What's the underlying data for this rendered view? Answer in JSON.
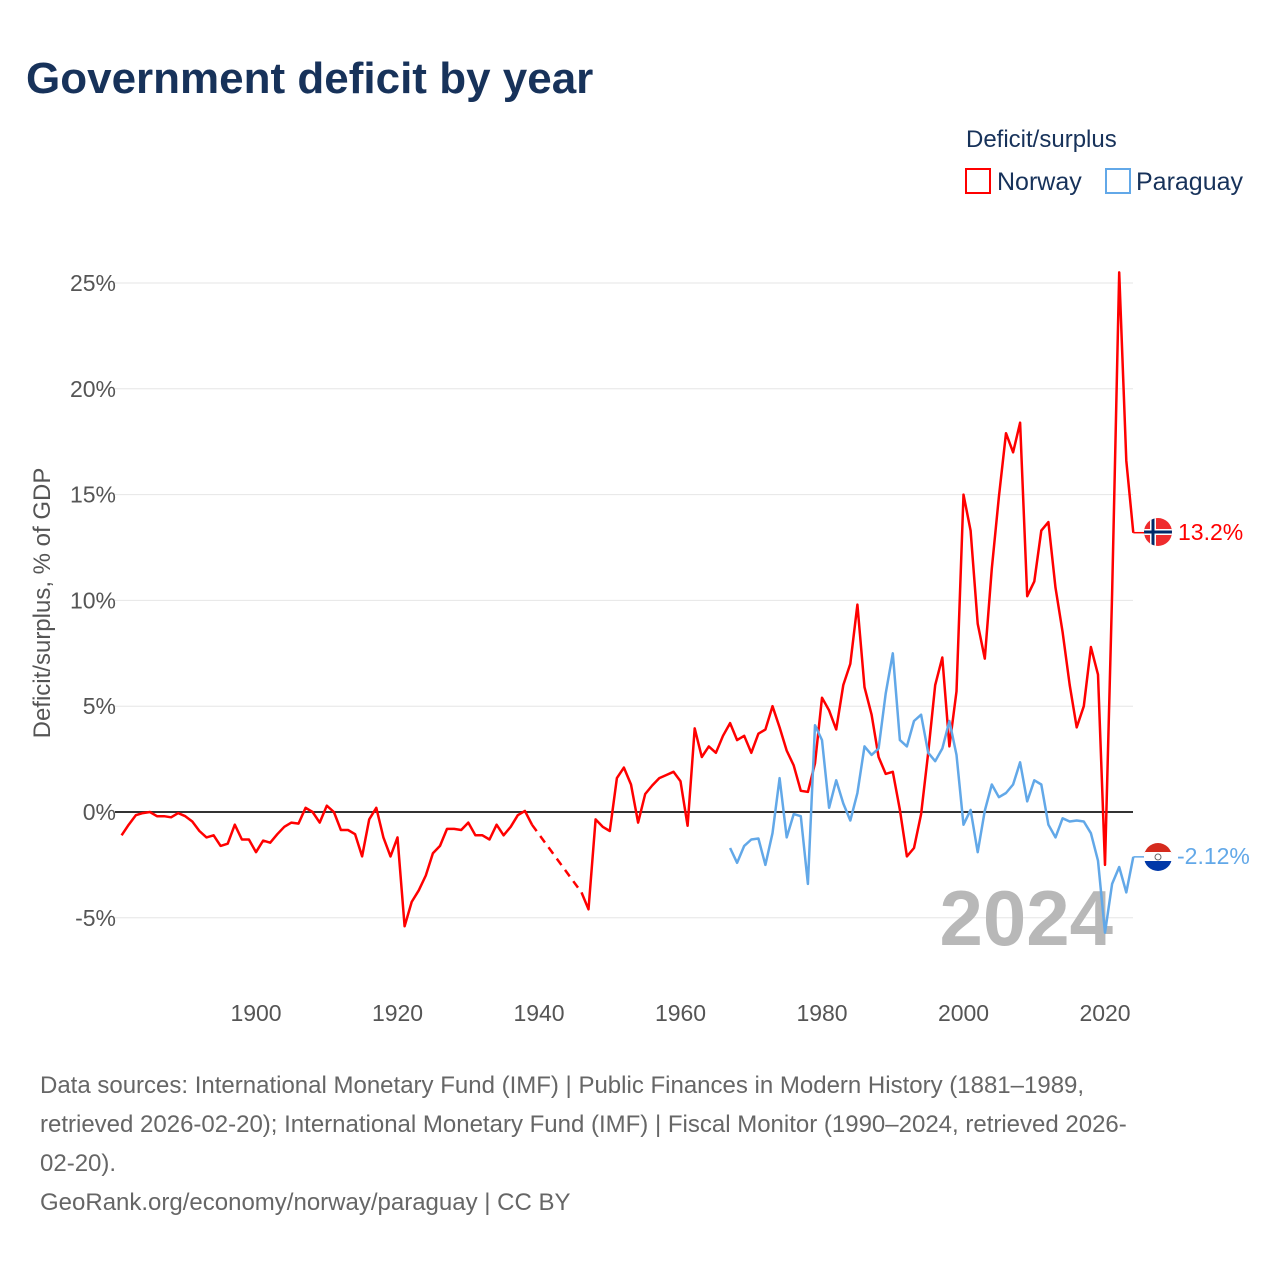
{
  "title": "Government deficit by year",
  "legend": {
    "title": "Deficit/surplus",
    "items": [
      {
        "label": "Norway",
        "color": "#ff0000"
      },
      {
        "label": "Paraguay",
        "color": "#62a8e8"
      }
    ]
  },
  "watermark_year": "2024",
  "footer": {
    "lines": [
      "Data sources: International Monetary Fund (IMF) | Public Finances in Modern History (1881–1989,",
      "retrieved 2026-02-20); International Monetary Fund (IMF) | Fiscal Monitor (1990–2024, retrieved 2026-",
      "02-20).",
      "GeoRank.org/economy/norway/paraguay | CC BY"
    ]
  },
  "chart_data": {
    "type": "line",
    "title": "Government deficit by year",
    "xlabel": "",
    "ylabel": "Deficit/surplus, % of GDP",
    "xlim": [
      1881,
      2024
    ],
    "ylim": [
      -7,
      26
    ],
    "yticks": [
      -5,
      0,
      5,
      10,
      15,
      20,
      25
    ],
    "ytick_labels": [
      "-5%",
      "0%",
      "5%",
      "10%",
      "15%",
      "20%",
      "25%"
    ],
    "xticks": [
      1900,
      1920,
      1940,
      1960,
      1980,
      2000,
      2020
    ],
    "xtick_labels": [
      "1900",
      "1920",
      "1940",
      "1960",
      "1980",
      "2000",
      "2020"
    ],
    "grid": true,
    "legend_position": "top-right",
    "series": [
      {
        "name": "Norway",
        "color": "#ff0000",
        "start_year": 1881,
        "end_label": "13.2%",
        "values": [
          -1.1,
          -0.6,
          -0.15,
          -0.05,
          0.0,
          -0.2,
          -0.2,
          -0.25,
          -0.05,
          -0.2,
          -0.45,
          -0.9,
          -1.2,
          -1.1,
          -1.6,
          -1.5,
          -0.6,
          -1.3,
          -1.3,
          -1.9,
          -1.35,
          -1.45,
          -1.05,
          -0.7,
          -0.5,
          -0.55,
          0.2,
          0.0,
          -0.5,
          0.3,
          0.0,
          -0.85,
          -0.85,
          -1.05,
          -2.1,
          -0.35,
          0.2,
          -1.2,
          -2.1,
          -1.2,
          -5.4,
          -4.25,
          -3.7,
          -3.0,
          -1.95,
          -1.6,
          -0.8,
          -0.8,
          -0.85,
          -0.5,
          -1.1,
          -1.1,
          -1.3,
          -0.6,
          -1.1,
          -0.7,
          -0.15,
          0.05,
          -0.6,
          null,
          null,
          null,
          null,
          null,
          null,
          -3.8,
          -4.6,
          -0.35,
          -0.7,
          -0.9,
          1.6,
          2.1,
          1.3,
          -0.5,
          0.85,
          1.25,
          1.6,
          1.75,
          1.9,
          1.45,
          -0.65,
          3.95,
          2.6,
          3.1,
          2.8,
          3.6,
          4.2,
          3.4,
          3.6,
          2.8,
          3.7,
          3.9,
          5.0,
          4.0,
          2.9,
          2.2,
          1.0,
          0.95,
          2.3,
          5.4,
          4.8,
          3.9,
          6.0,
          7.0,
          9.8,
          5.9,
          4.6,
          2.6,
          1.8,
          1.9,
          0.1,
          -2.1,
          -1.7,
          -0.1,
          2.8,
          6.0,
          7.3,
          3.1,
          5.7,
          15.0,
          13.3,
          8.9,
          7.25,
          11.5,
          14.9,
          17.9,
          17.0,
          18.4,
          10.2,
          10.9,
          13.3,
          13.7,
          10.6,
          8.5,
          6.0,
          4.0,
          5.0,
          7.8,
          6.5,
          -2.5,
          10.3,
          25.5,
          16.6,
          13.2
        ]
      },
      {
        "name": "Paraguay",
        "color": "#62a8e8",
        "start_year": 1967,
        "end_label": "-2.12%",
        "values": [
          -1.7,
          -2.4,
          -1.6,
          -1.3,
          -1.25,
          -2.5,
          -1.0,
          1.6,
          -1.2,
          -0.1,
          -0.2,
          -3.4,
          4.1,
          3.4,
          0.2,
          1.5,
          0.4,
          -0.4,
          0.9,
          3.1,
          2.7,
          3.0,
          5.6,
          7.5,
          3.4,
          3.1,
          4.3,
          4.6,
          2.8,
          2.4,
          3.0,
          4.3,
          2.7,
          -0.6,
          0.1,
          -1.9,
          0.06,
          1.3,
          0.7,
          0.9,
          1.3,
          2.35,
          0.5,
          1.5,
          1.3,
          -0.6,
          -1.2,
          -0.3,
          -0.45,
          -0.4,
          -0.45,
          -1.0,
          -2.3,
          -5.7,
          -3.4,
          -2.6,
          -3.8,
          -2.12
        ]
      }
    ]
  }
}
